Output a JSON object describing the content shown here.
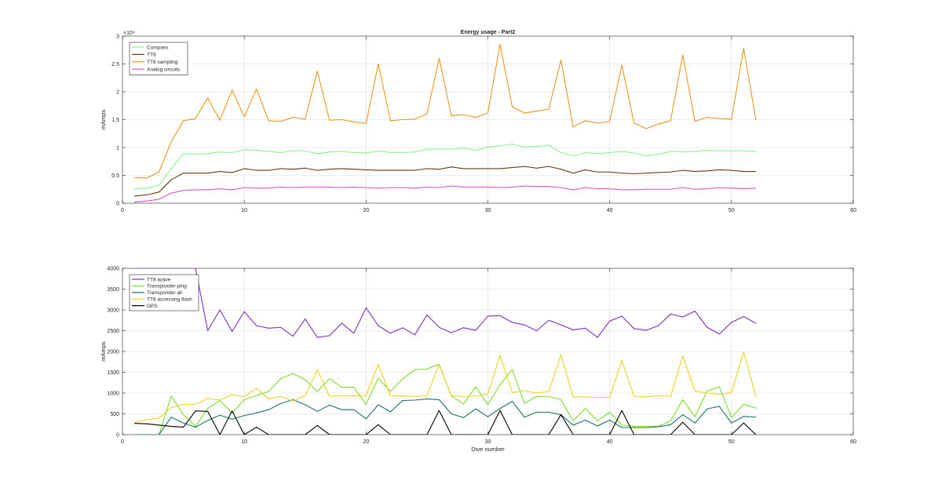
{
  "chart_data": [
    {
      "type": "line",
      "title": "Energy usage - Part2",
      "xlabel": "",
      "ylabel": "mAmps",
      "xlim": [
        0,
        60
      ],
      "ylim": [
        0,
        30000
      ],
      "y_exponent_label": "×10⁴",
      "xticks": [
        "0",
        "10",
        "20",
        "30",
        "40",
        "50",
        "60"
      ],
      "yticks": [
        "0",
        "0.5",
        "1",
        "1.5",
        "2",
        "2.5",
        "3"
      ],
      "grid": true,
      "legend_position": "top-left",
      "x": [
        1,
        2,
        3,
        4,
        5,
        6,
        7,
        8,
        9,
        10,
        11,
        12,
        13,
        14,
        15,
        16,
        17,
        18,
        19,
        20,
        21,
        22,
        23,
        24,
        25,
        26,
        27,
        28,
        29,
        30,
        31,
        32,
        33,
        34,
        35,
        36,
        37,
        38,
        39,
        40,
        41,
        42,
        43,
        44,
        45,
        46,
        47,
        48,
        49,
        50,
        51,
        52
      ],
      "series": [
        {
          "name": "Compass",
          "color": "#90ee90",
          "values": [
            2600,
            2700,
            3200,
            6200,
            8900,
            8800,
            8900,
            9200,
            9100,
            9600,
            9500,
            9300,
            9100,
            9400,
            9400,
            8900,
            9200,
            9300,
            9100,
            9000,
            9400,
            9100,
            9100,
            9200,
            9700,
            9700,
            9700,
            9900,
            9500,
            10100,
            10300,
            10600,
            10100,
            10200,
            10400,
            9100,
            8500,
            9100,
            8900,
            9100,
            9300,
            9000,
            8500,
            8800,
            9300,
            9200,
            9300,
            9500,
            9400,
            9400,
            9400,
            9300
          ]
        },
        {
          "name": "TT8",
          "color": "#6b3a12",
          "values": [
            1300,
            1500,
            2000,
            4200,
            5400,
            5400,
            5400,
            5700,
            5500,
            6200,
            5900,
            5900,
            6200,
            6100,
            6300,
            5900,
            6100,
            6200,
            6100,
            6000,
            5900,
            5900,
            5900,
            5900,
            6200,
            6100,
            6500,
            6200,
            6200,
            6200,
            6200,
            6400,
            6600,
            6300,
            6600,
            6100,
            5400,
            6000,
            5600,
            5600,
            5400,
            5300,
            5400,
            5500,
            5600,
            5900,
            5700,
            5800,
            6000,
            5900,
            5700,
            5700
          ]
        },
        {
          "name": "TT8 sampling",
          "color": "#e8961e",
          "values": [
            4600,
            4500,
            5600,
            11000,
            14800,
            15200,
            18900,
            14900,
            20300,
            15500,
            20500,
            14800,
            14700,
            15400,
            15100,
            23700,
            14900,
            15000,
            14600,
            14300,
            25000,
            14800,
            15000,
            15100,
            16000,
            26000,
            15700,
            15900,
            15400,
            16200,
            28500,
            17300,
            16200,
            16500,
            16900,
            25700,
            13700,
            14800,
            14400,
            14700,
            24800,
            14400,
            13400,
            14200,
            14800,
            26600,
            14700,
            15400,
            15200,
            15100,
            27800,
            15000
          ]
        },
        {
          "name": "Analog circuits",
          "color": "#dd55c0",
          "values": [
            200,
            400,
            700,
            1800,
            2300,
            2400,
            2400,
            2600,
            2400,
            2800,
            2700,
            2700,
            2900,
            2800,
            2900,
            2900,
            2900,
            2800,
            2900,
            2800,
            2700,
            2800,
            2800,
            2700,
            2900,
            2800,
            3100,
            2900,
            2900,
            2900,
            2800,
            2900,
            3100,
            3000,
            3000,
            2800,
            2400,
            2800,
            2600,
            2600,
            2400,
            2400,
            2500,
            2500,
            2500,
            2800,
            2500,
            2600,
            2800,
            2700,
            2600,
            2700
          ]
        }
      ]
    },
    {
      "type": "line",
      "title": "",
      "xlabel": "Dive number",
      "ylabel": "mAmps",
      "xlim": [
        0,
        60
      ],
      "ylim": [
        0,
        4000
      ],
      "xticks": [
        "0",
        "10",
        "20",
        "30",
        "40",
        "50",
        "60"
      ],
      "yticks": [
        "0",
        "500",
        "1000",
        "1500",
        "2000",
        "2500",
        "3000",
        "3500",
        "4000"
      ],
      "grid": true,
      "legend_position": "top-left",
      "x": [
        1,
        2,
        3,
        4,
        5,
        6,
        7,
        8,
        9,
        10,
        11,
        12,
        13,
        14,
        15,
        16,
        17,
        18,
        19,
        20,
        21,
        22,
        23,
        24,
        25,
        26,
        27,
        28,
        29,
        30,
        31,
        32,
        33,
        34,
        35,
        36,
        37,
        38,
        39,
        40,
        41,
        42,
        43,
        44,
        45,
        46,
        47,
        48,
        49,
        50,
        51,
        52
      ],
      "series": [
        {
          "name": "TT8 active",
          "color": "#7b2fbf",
          "values": [
            4000,
            4000,
            4000,
            4000,
            4000,
            4000,
            2500,
            3000,
            2480,
            2960,
            2620,
            2560,
            2580,
            2370,
            2780,
            2340,
            2380,
            2680,
            2440,
            3050,
            2620,
            2440,
            2570,
            2400,
            2880,
            2580,
            2450,
            2570,
            2510,
            2850,
            2860,
            2700,
            2640,
            2500,
            2750,
            2640,
            2520,
            2560,
            2340,
            2730,
            2850,
            2550,
            2510,
            2620,
            2900,
            2830,
            2970,
            2580,
            2420,
            2700,
            2840,
            2680
          ]
        },
        {
          "name": "Transponder ping",
          "color": "#7ddc2e",
          "values": [
            0,
            0,
            0,
            930,
            480,
            200,
            630,
            820,
            520,
            840,
            940,
            1040,
            1350,
            1470,
            1320,
            1040,
            1350,
            1140,
            1140,
            730,
            1360,
            1040,
            1340,
            1560,
            1580,
            1690,
            930,
            740,
            1150,
            720,
            1200,
            1570,
            750,
            920,
            920,
            840,
            330,
            630,
            330,
            540,
            230,
            200,
            200,
            200,
            330,
            840,
            430,
            1050,
            1150,
            410,
            730,
            640
          ]
        },
        {
          "name": "Transponder all",
          "color": "#1f6f6f",
          "values": [
            0,
            0,
            0,
            420,
            280,
            180,
            340,
            470,
            370,
            460,
            520,
            600,
            750,
            840,
            720,
            560,
            710,
            600,
            600,
            380,
            720,
            550,
            820,
            830,
            860,
            840,
            500,
            410,
            620,
            430,
            630,
            800,
            420,
            540,
            540,
            480,
            230,
            350,
            210,
            350,
            170,
            170,
            170,
            190,
            240,
            480,
            280,
            620,
            680,
            280,
            440,
            420
          ]
        },
        {
          "name": "TT8 accessing flash",
          "color": "#f0d020",
          "values": [
            300,
            360,
            400,
            650,
            730,
            730,
            870,
            830,
            960,
            910,
            1120,
            860,
            920,
            810,
            940,
            1560,
            920,
            940,
            930,
            940,
            1690,
            940,
            930,
            920,
            940,
            1690,
            940,
            920,
            930,
            970,
            1910,
            1010,
            1060,
            1000,
            1040,
            1920,
            910,
            910,
            890,
            900,
            1780,
            920,
            910,
            940,
            920,
            1890,
            1050,
            1000,
            970,
            1010,
            2000,
            920
          ]
        },
        {
          "name": "GPS",
          "color": "#000000",
          "values": [
            270,
            260,
            230,
            200,
            180,
            570,
            560,
            0,
            570,
            0,
            180,
            0,
            0,
            0,
            0,
            220,
            0,
            0,
            0,
            0,
            240,
            0,
            0,
            0,
            0,
            580,
            0,
            0,
            0,
            0,
            580,
            0,
            0,
            0,
            0,
            480,
            0,
            0,
            0,
            0,
            580,
            0,
            0,
            0,
            0,
            300,
            0,
            0,
            0,
            0,
            280,
            0
          ]
        }
      ]
    }
  ]
}
